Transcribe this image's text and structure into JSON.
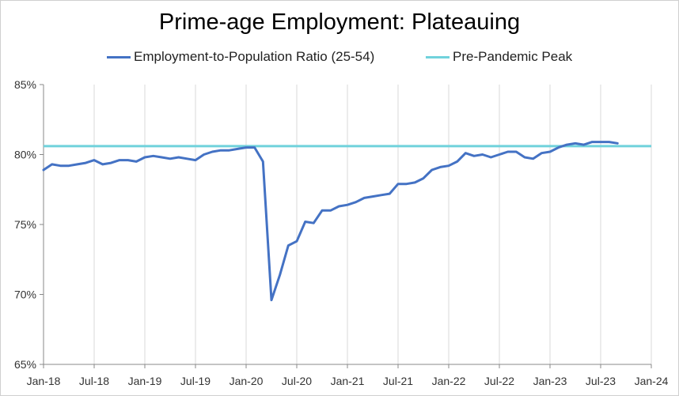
{
  "chart_data": {
    "type": "line",
    "title": "Prime-age Employment: Plateauing",
    "xlabel": "",
    "ylabel": "",
    "x_ticks": [
      "Jan-18",
      "Jul-18",
      "Jan-19",
      "Jul-19",
      "Jan-20",
      "Jul-20",
      "Jan-21",
      "Jul-21",
      "Jan-22",
      "Jul-22",
      "Jan-23",
      "Jul-23",
      "Jan-24"
    ],
    "y_ticks": [
      "65%",
      "70%",
      "75%",
      "80%",
      "85%"
    ],
    "y_tick_values": [
      65,
      70,
      75,
      80,
      85
    ],
    "ylim": [
      65,
      85
    ],
    "xlim_months": [
      0,
      72
    ],
    "grid": "vertical",
    "legend_position": "top",
    "series": [
      {
        "name": "Employment-to-Population Ratio (25-54)",
        "color": "#4472c4",
        "start": "Jan-18",
        "values": [
          78.9,
          79.3,
          79.2,
          79.2,
          79.3,
          79.4,
          79.6,
          79.3,
          79.4,
          79.6,
          79.6,
          79.5,
          79.8,
          79.9,
          79.8,
          79.7,
          79.8,
          79.7,
          79.6,
          80.0,
          80.2,
          80.3,
          80.3,
          80.4,
          80.5,
          80.5,
          79.5,
          69.6,
          71.4,
          73.5,
          73.8,
          75.2,
          75.1,
          76.0,
          76.0,
          76.3,
          76.4,
          76.6,
          76.9,
          77.0,
          77.1,
          77.2,
          77.9,
          77.9,
          78.0,
          78.3,
          78.9,
          79.1,
          79.2,
          79.5,
          80.1,
          79.9,
          80.0,
          79.8,
          80.0,
          80.2,
          80.2,
          79.8,
          79.7,
          80.1,
          80.2,
          80.5,
          80.7,
          80.8,
          80.7,
          80.9,
          80.9,
          80.9,
          80.8
        ]
      },
      {
        "name": "Pre-Pandemic Peak",
        "color": "#70d2dc",
        "values": [
          80.6
        ]
      }
    ]
  }
}
